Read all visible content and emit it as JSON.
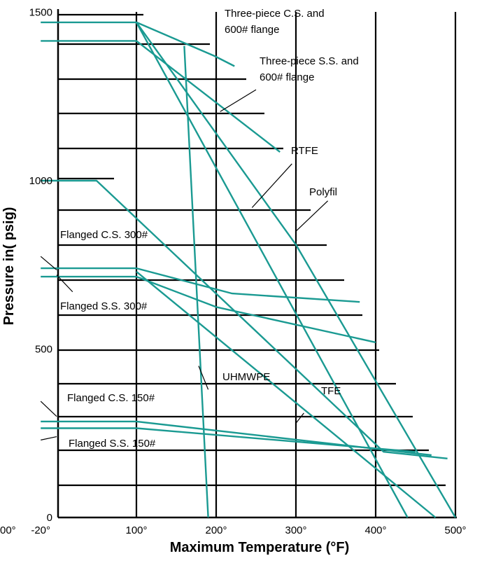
{
  "chart_data": {
    "type": "line",
    "title": "",
    "xlabel": "Maximum Temperature (°F)",
    "ylabel": "Pressure in( psig)",
    "xlim": [
      -20,
      500
    ],
    "ylim": [
      0,
      1500
    ],
    "x_ticks": [
      {
        "value": -20,
        "label": "-20°"
      },
      {
        "value": 100,
        "label": "100°"
      },
      {
        "value": 200,
        "label": "200°"
      },
      {
        "value": 300,
        "label": "300°"
      },
      {
        "value": 400,
        "label": "400°"
      },
      {
        "value": 500,
        "label": "500°"
      }
    ],
    "x_tick_clipped_left": "00°",
    "y_ticks": [
      {
        "value": 0,
        "label": "0"
      },
      {
        "value": 500,
        "label": "500"
      },
      {
        "value": 1000,
        "label": "1000"
      },
      {
        "value": 1500,
        "label": "1500"
      }
    ],
    "grid": true,
    "vertical_gridlines": [
      100,
      200,
      300,
      400,
      500
    ],
    "series_color": "#1a9a92",
    "series": [
      {
        "x": [
          -20,
          100,
          198,
          223
        ],
        "y": [
          1470,
          1470,
          1370,
          1340
        ]
      },
      {
        "x": [
          -20,
          100,
          280
        ],
        "y": [
          1415,
          1415,
          1085
        ]
      },
      {
        "x": [
          -20,
          50,
          410,
          490
        ],
        "y": [
          1000,
          1000,
          195,
          175
        ]
      },
      {
        "x": [
          100,
          300,
          500
        ],
        "y": [
          1470,
          810,
          0
        ]
      },
      {
        "x": [
          -20,
          100,
          220,
          380
        ],
        "y": [
          740,
          740,
          665,
          640
        ]
      },
      {
        "x": [
          -20,
          100,
          200,
          400
        ],
        "y": [
          715,
          715,
          625,
          520
        ]
      },
      {
        "x": [
          -20,
          100,
          470
        ],
        "y": [
          285,
          285,
          185
        ]
      },
      {
        "x": [
          -20,
          100,
          450
        ],
        "y": [
          265,
          265,
          195
        ]
      },
      {
        "x": [
          160,
          190
        ],
        "y": [
          1400,
          0
        ]
      },
      {
        "x": [
          100,
          440
        ],
        "y": [
          1470,
          0
        ]
      },
      {
        "x": [
          100,
          475
        ],
        "y": [
          730,
          0
        ]
      }
    ],
    "annotations": [
      {
        "lines": [
          "Three-piece C.S. and",
          "600# flange"
        ],
        "leader": null
      },
      {
        "lines": [
          "Three-piece S.S. and",
          "600# flange"
        ],
        "leader": [
          [
            250,
            1270
          ],
          [
            205,
            1205
          ]
        ]
      },
      {
        "lines": [
          "RTFE"
        ],
        "leader": [
          [
            295,
            1050
          ],
          [
            245,
            920
          ]
        ]
      },
      {
        "lines": [
          "Polyfil"
        ],
        "leader": [
          [
            340,
            940
          ],
          [
            300,
            850
          ]
        ]
      },
      {
        "lines": [
          "Flanged C.S. 300#"
        ],
        "leader": [
          [
            -20,
            775
          ],
          [
            0,
            735
          ]
        ]
      },
      {
        "lines": [
          "Flanged S.S. 300#"
        ],
        "leader": [
          [
            0,
            720
          ],
          [
            20,
            670
          ]
        ]
      },
      {
        "lines": [
          "UHMWPE"
        ],
        "leader": [
          [
            190,
            380
          ],
          [
            178,
            450
          ]
        ]
      },
      {
        "lines": [
          "TFE"
        ],
        "leader": [
          [
            310,
            310
          ],
          [
            300,
            280
          ]
        ]
      },
      {
        "lines": [
          "Flanged C.S. 150#"
        ],
        "leader": [
          [
            -20,
            345
          ],
          [
            0,
            300
          ]
        ]
      },
      {
        "lines": [
          "Flanged S.S. 150#"
        ],
        "leader": [
          [
            0,
            240
          ],
          [
            -20,
            230
          ]
        ]
      }
    ]
  }
}
